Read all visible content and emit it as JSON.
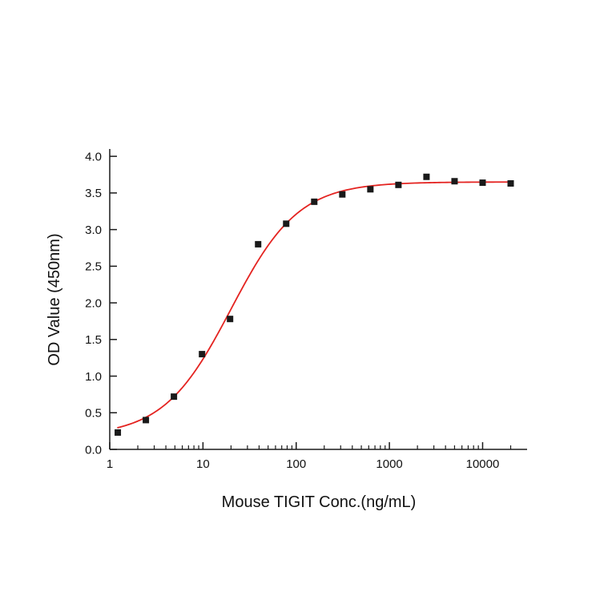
{
  "page": {
    "background": "#ffffff"
  },
  "chart_data": {
    "type": "scatter",
    "title": "",
    "xlabel": "Mouse TIGIT Conc.(ng/mL)",
    "ylabel": "OD Value (450nm)",
    "x_scale": "log",
    "xlim": [
      1,
      30000
    ],
    "ylim": [
      0,
      4.1
    ],
    "grid": false,
    "legend": "none",
    "x_major_ticks": [
      1,
      10,
      100,
      1000,
      10000
    ],
    "x_major_tick_labels": [
      "1",
      "10",
      "100",
      "1000",
      "10000"
    ],
    "y_major_ticks": [
      0.0,
      0.5,
      1.0,
      1.5,
      2.0,
      2.5,
      3.0,
      3.5,
      4.0
    ],
    "y_major_tick_labels": [
      "0.0",
      "0.5",
      "1.0",
      "1.5",
      "2.0",
      "2.5",
      "3.0",
      "3.5",
      "4.0"
    ],
    "points": [
      {
        "x": 1.22,
        "y": 0.23
      },
      {
        "x": 2.44,
        "y": 0.4
      },
      {
        "x": 4.88,
        "y": 0.72
      },
      {
        "x": 9.77,
        "y": 1.3
      },
      {
        "x": 19.53,
        "y": 1.78
      },
      {
        "x": 39.06,
        "y": 2.8
      },
      {
        "x": 78.13,
        "y": 3.08
      },
      {
        "x": 156.25,
        "y": 3.38
      },
      {
        "x": 312.5,
        "y": 3.48
      },
      {
        "x": 625,
        "y": 3.55
      },
      {
        "x": 1250,
        "y": 3.61
      },
      {
        "x": 2500,
        "y": 3.72
      },
      {
        "x": 5000,
        "y": 3.66
      },
      {
        "x": 10000,
        "y": 3.64
      },
      {
        "x": 20000,
        "y": 3.63
      }
    ],
    "marker": {
      "shape": "square",
      "color": "#1a1a1a",
      "size": 8
    },
    "fit_curve": {
      "type": "4PL",
      "bottom": 0.18,
      "top": 3.65,
      "ec50": 20,
      "hill": 1.2,
      "color": "#e42320",
      "x_start": 1.22,
      "x_end": 20000
    },
    "axis_color": "#1a1a1a"
  }
}
